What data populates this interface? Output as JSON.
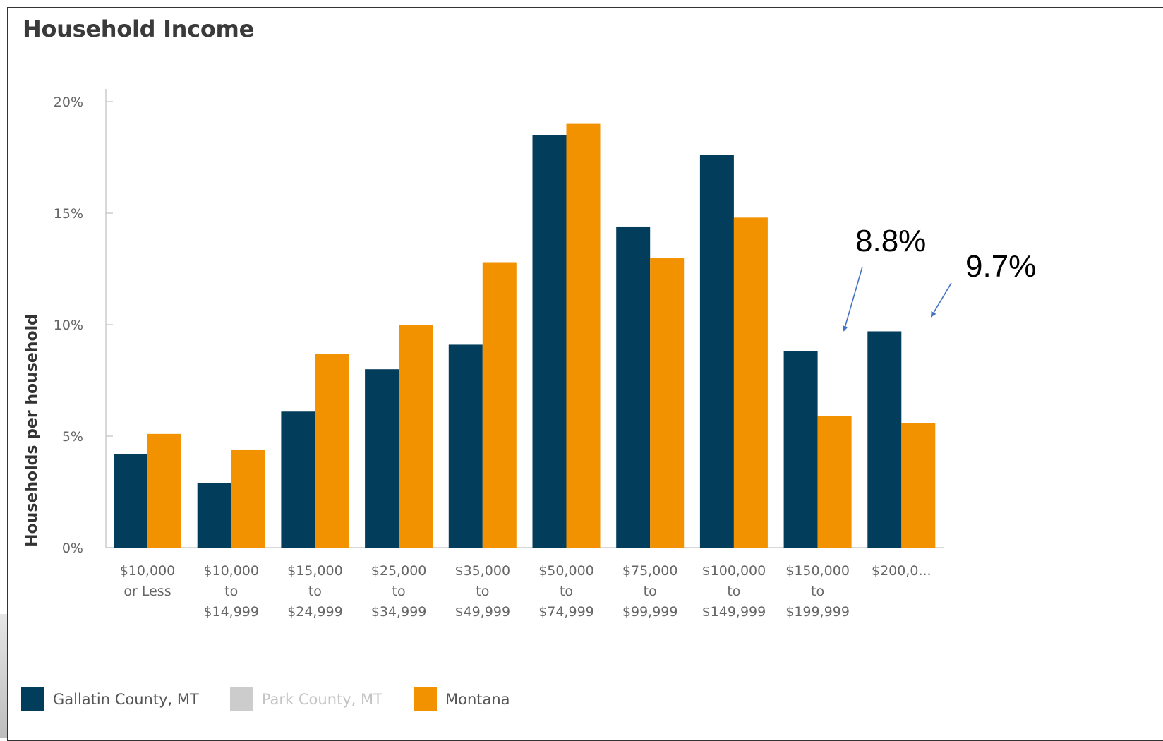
{
  "chart_data": {
    "type": "bar",
    "title": "Household Income",
    "ylabel": "Households per household",
    "xlabel": "",
    "ylim": [
      0,
      20
    ],
    "yticks": [
      "0%",
      "5%",
      "10%",
      "15%",
      "20%"
    ],
    "ytick_values": [
      0,
      5,
      10,
      15,
      20
    ],
    "categories": [
      [
        "$10,000",
        "or Less"
      ],
      [
        "$10,000",
        "to",
        "$14,999"
      ],
      [
        "$15,000",
        "to",
        "$24,999"
      ],
      [
        "$25,000",
        "to",
        "$34,999"
      ],
      [
        "$35,000",
        "to",
        "$49,999"
      ],
      [
        "$50,000",
        "to",
        "$74,999"
      ],
      [
        "$75,000",
        "to",
        "$99,999"
      ],
      [
        "$100,000",
        "to",
        "$149,999"
      ],
      [
        "$150,000",
        "to",
        "$199,999"
      ],
      [
        "$200,0..."
      ]
    ],
    "series": [
      {
        "name": "Gallatin County, MT",
        "color": "#023d5b",
        "values": [
          4.2,
          2.9,
          6.1,
          8.0,
          9.1,
          18.5,
          14.4,
          17.6,
          8.8,
          9.7
        ]
      },
      {
        "name": "Montana",
        "color": "#f39200",
        "values": [
          5.1,
          4.4,
          8.7,
          10.0,
          12.8,
          19.0,
          13.0,
          14.8,
          5.9,
          5.6
        ]
      }
    ],
    "legend": [
      {
        "name": "Gallatin County, MT",
        "color": "#023d5b",
        "text_color": "#555555"
      },
      {
        "name": "Park County, MT",
        "color": "#cccccc",
        "text_color": "#c4c4c4"
      },
      {
        "name": "Montana",
        "color": "#f39200",
        "text_color": "#555555"
      }
    ],
    "legend_position": "bottom-left",
    "annotations": [
      {
        "text": "8.8%",
        "points_to_category": 8,
        "arrow_color": "#4472c4"
      },
      {
        "text": "9.7%",
        "points_to_category": 9,
        "arrow_color": "#4472c4"
      }
    ],
    "grid": false
  }
}
